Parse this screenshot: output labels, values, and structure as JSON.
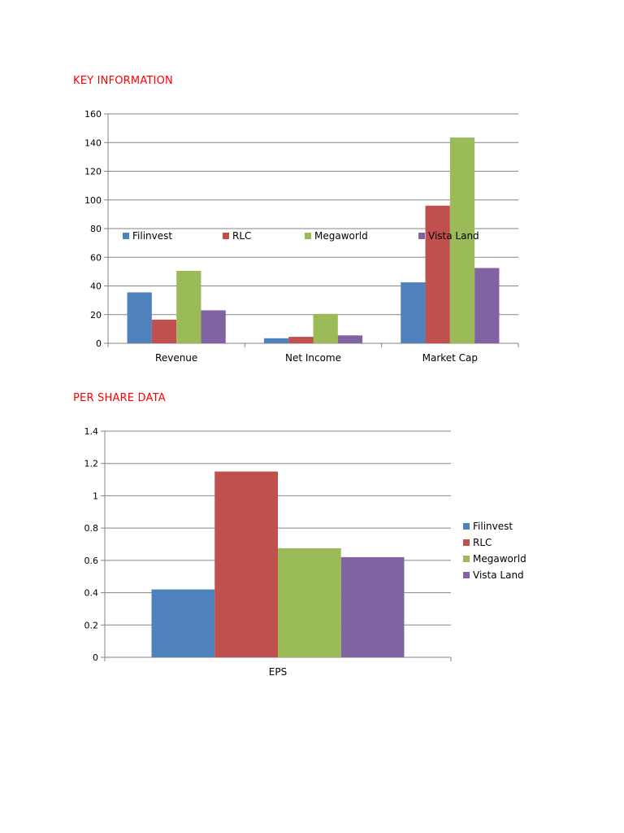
{
  "sections": {
    "key_information_title": "KEY INFORMATION",
    "per_share_data_title": "PER SHARE DATA"
  },
  "colors": {
    "title": "#ff0000",
    "Filinvest": "#4f81bd",
    "RLC": "#c0504d",
    "Megaworld": "#9bbb59",
    "Vista Land": "#8064a2"
  },
  "chart_data": [
    {
      "type": "bar",
      "title": "",
      "categories": [
        "Revenue",
        "Net Income",
        "Market Cap"
      ],
      "series": [
        {
          "name": "Filinvest",
          "values": [
            35.5,
            3.5,
            42.5
          ]
        },
        {
          "name": "RLC",
          "values": [
            16.5,
            4.5,
            96
          ]
        },
        {
          "name": "Megaworld",
          "values": [
            50.5,
            20.5,
            143.5
          ]
        },
        {
          "name": "Vista Land",
          "values": [
            23,
            5.5,
            52.5
          ]
        }
      ],
      "ylim": [
        0,
        160
      ],
      "yticks": [
        0,
        20,
        40,
        60,
        80,
        100,
        120,
        140,
        160
      ],
      "ytick_labels": [
        "0",
        "20",
        "40",
        "60",
        "80",
        "100",
        "120",
        "140",
        "160"
      ],
      "grid": true,
      "legend_position": "inside-middle"
    },
    {
      "type": "bar",
      "title": "",
      "categories": [
        "EPS"
      ],
      "series": [
        {
          "name": "Filinvest",
          "values": [
            0.42
          ]
        },
        {
          "name": "RLC",
          "values": [
            1.15
          ]
        },
        {
          "name": "Megaworld",
          "values": [
            0.675
          ]
        },
        {
          "name": "Vista Land",
          "values": [
            0.62
          ]
        }
      ],
      "ylim": [
        0,
        1.4
      ],
      "yticks": [
        0,
        0.2,
        0.4,
        0.6,
        0.8,
        1.0,
        1.2,
        1.4
      ],
      "ytick_labels": [
        "0",
        "0.2",
        "0.4",
        "0.6",
        "0.8",
        "1",
        "1.2",
        "1.4"
      ],
      "grid": true,
      "legend_position": "right"
    }
  ]
}
